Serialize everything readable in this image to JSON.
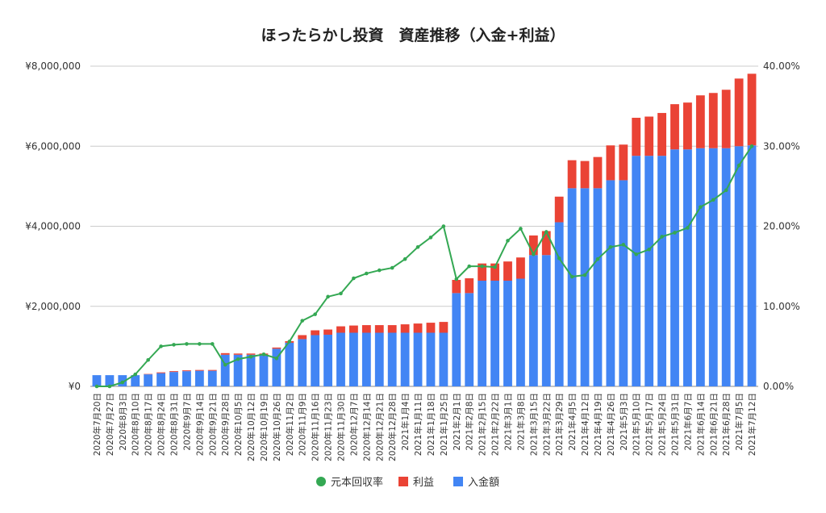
{
  "chart_data": {
    "type": "bar",
    "title": "ほったらかし投資　資産推移（入金+利益）",
    "stacked": true,
    "categories": [
      "2020年7月20日",
      "2020年7月27日",
      "2020年8月3日",
      "2020年8月10日",
      "2020年8月17日",
      "2020年8月24日",
      "2020年8月31日",
      "2020年9月7日",
      "2020年9月14日",
      "2020年9月21日",
      "2020年9月28日",
      "2020年10月5日",
      "2020年10月12日",
      "2020年10月19日",
      "2020年10月26日",
      "2020年11月2日",
      "2020年11月9日",
      "2020年11月16日",
      "2020年11月23日",
      "2020年11月30日",
      "2020年12月7日",
      "2020年12月14日",
      "2020年12月21日",
      "2020年12月28日",
      "2021年1月4日",
      "2021年1月11日",
      "2021年1月18日",
      "2021年1月25日",
      "2021年2月1日",
      "2021年2月8日",
      "2021年2月15日",
      "2021年2月22日",
      "2021年3月1日",
      "2021年3月8日",
      "2021年3月15日",
      "2021年3月22日",
      "2021年3月29日",
      "2021年4月5日",
      "2021年4月12日",
      "2021年4月19日",
      "2021年4月26日",
      "2021年5月3日",
      "2021年5月10日",
      "2021年5月17日",
      "2021年5月24日",
      "2021年5月31日",
      "2021年6月7日",
      "2021年6月14日",
      "2021年6月21日",
      "2021年6月28日",
      "2021年7月5日",
      "2021年7月12日"
    ],
    "series": [
      {
        "name": "入金額",
        "kind": "bar",
        "axis": "left",
        "color": "#4285f4",
        "values": [
          280000,
          280000,
          280000,
          280000,
          300000,
          330000,
          360000,
          380000,
          390000,
          390000,
          790000,
          790000,
          790000,
          790000,
          940000,
          1090000,
          1180000,
          1280000,
          1290000,
          1340000,
          1340000,
          1340000,
          1340000,
          1340000,
          1340000,
          1340000,
          1340000,
          1340000,
          2330000,
          2330000,
          2640000,
          2640000,
          2640000,
          2690000,
          3280000,
          3280000,
          4100000,
          4950000,
          4950000,
          4950000,
          5150000,
          5150000,
          5760000,
          5760000,
          5760000,
          5920000,
          5920000,
          5950000,
          5950000,
          5950000,
          6000000,
          6020000
        ]
      },
      {
        "name": "利益",
        "kind": "bar",
        "axis": "left",
        "color": "#ea4335",
        "values": [
          0,
          0,
          0,
          0,
          10000,
          20000,
          20000,
          20000,
          20000,
          20000,
          40000,
          30000,
          30000,
          30000,
          30000,
          40000,
          100000,
          120000,
          130000,
          160000,
          180000,
          190000,
          190000,
          190000,
          210000,
          230000,
          250000,
          270000,
          330000,
          370000,
          430000,
          430000,
          480000,
          530000,
          490000,
          600000,
          640000,
          700000,
          680000,
          780000,
          870000,
          890000,
          950000,
          980000,
          1070000,
          1130000,
          1170000,
          1320000,
          1380000,
          1460000,
          1690000,
          1790000
        ]
      },
      {
        "name": "元本回収率",
        "kind": "line",
        "axis": "right",
        "color": "#34a853",
        "values": [
          0.0,
          0.0,
          0.5,
          1.5,
          3.3,
          5.0,
          5.2,
          5.3,
          5.3,
          5.3,
          2.7,
          3.4,
          3.7,
          4.0,
          3.5,
          5.6,
          8.2,
          9.0,
          11.2,
          11.6,
          13.5,
          14.1,
          14.5,
          14.8,
          15.9,
          17.4,
          18.6,
          20.0,
          13.4,
          15.0,
          15.0,
          14.9,
          18.2,
          19.7,
          16.5,
          19.3,
          16.0,
          13.7,
          13.9,
          15.9,
          17.4,
          17.7,
          16.5,
          17.1,
          18.7,
          19.2,
          19.8,
          22.4,
          23.3,
          24.5,
          27.6,
          30.0
        ]
      }
    ],
    "y_left": {
      "ticks": [
        "¥0",
        "¥2,000,000",
        "¥4,000,000",
        "¥6,000,000",
        "¥8,000,000"
      ],
      "range": [
        0,
        8000000
      ]
    },
    "y_right": {
      "ticks": [
        "0.00%",
        "10.00%",
        "20.00%",
        "30.00%",
        "40.00%"
      ],
      "range": [
        0,
        40
      ]
    },
    "grid": true,
    "legend": {
      "position": "bottom",
      "items": [
        "元本回収率",
        "利益",
        "入金額"
      ]
    }
  }
}
